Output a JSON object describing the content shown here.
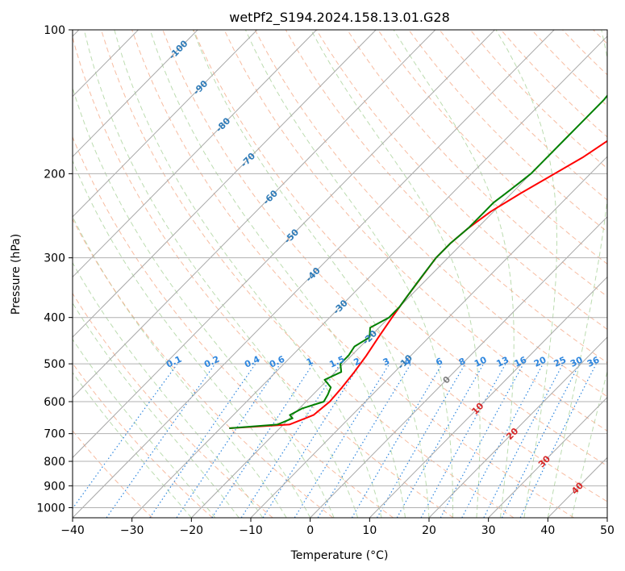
{
  "chart_data": {
    "type": "line",
    "title": "wetPf2_S194.2024.158.13.01.G28",
    "xlabel": "Temperature (°C)",
    "ylabel": "Pressure (hPa)",
    "xlim": [
      -40,
      50
    ],
    "ylim": [
      1050,
      100
    ],
    "y_scale": "log",
    "x_ticks": [
      -40,
      -30,
      -20,
      -10,
      0,
      10,
      20,
      30,
      40,
      50
    ],
    "y_ticks": [
      100,
      200,
      300,
      400,
      500,
      600,
      700,
      800,
      900,
      1000
    ],
    "grid": true,
    "skew_isotherm_labels": [
      {
        "t": -100,
        "p": 110
      },
      {
        "t": -90,
        "p": 132
      },
      {
        "t": -80,
        "p": 158
      },
      {
        "t": -70,
        "p": 187
      },
      {
        "t": -60,
        "p": 224
      },
      {
        "t": -50,
        "p": 270
      },
      {
        "t": -40,
        "p": 325
      },
      {
        "t": -30,
        "p": 380
      },
      {
        "t": -20,
        "p": 440
      },
      {
        "t": -10,
        "p": 495
      },
      {
        "t": 0,
        "p": 540
      },
      {
        "t": 10,
        "p": 620
      },
      {
        "t": 20,
        "p": 700
      },
      {
        "t": 30,
        "p": 800
      },
      {
        "t": 40,
        "p": 910
      }
    ],
    "mixing_ratio_labels": [
      "0.1",
      "0.2",
      "0.4",
      "0.6",
      "1",
      "1.5",
      "2",
      "3",
      "4",
      "6",
      "8",
      "10",
      "13",
      "16",
      "20",
      "25",
      "30",
      "36"
    ],
    "series": [
      {
        "color": "#ff0000",
        "p": [
          682,
          670,
          640,
          600,
          560,
          520,
          480,
          440,
          400,
          360,
          330,
          300,
          280,
          260,
          240,
          220,
          200,
          185,
          170,
          160,
          150,
          140,
          130,
          120,
          110,
          100
        ],
        "t": [
          -28.5,
          -19,
          -16.5,
          -16,
          -16.3,
          -16.8,
          -17.5,
          -18.5,
          -19.5,
          -20.5,
          -21.2,
          -22,
          -22,
          -21.5,
          -20.5,
          -18.5,
          -16,
          -14,
          -12.5,
          -11.5,
          -11,
          -10.5,
          -10.5,
          -10.5,
          -10.8,
          -11
        ]
      },
      {
        "color": "#008000",
        "p": [
          682,
          670,
          650,
          640,
          620,
          600,
          580,
          560,
          540,
          520,
          500,
          480,
          460,
          440,
          420,
          400,
          380,
          360,
          340,
          320,
          300,
          280,
          260,
          250,
          240,
          230,
          220,
          210,
          200,
          190,
          180,
          170,
          160,
          150,
          140,
          130,
          120,
          110,
          100
        ],
        "t": [
          -28.5,
          -21,
          -19.5,
          -20.5,
          -19.5,
          -17,
          -17.5,
          -18.2,
          -20.5,
          -19,
          -20.5,
          -20.5,
          -21,
          -20,
          -21.5,
          -20,
          -20,
          -20.5,
          -21,
          -21.5,
          -22,
          -22,
          -21.5,
          -21.5,
          -21.5,
          -21.5,
          -21,
          -20.5,
          -20,
          -20,
          -20,
          -20,
          -20,
          -20,
          -20,
          -20.5,
          -20.5,
          -21,
          -21.5
        ]
      }
    ]
  }
}
